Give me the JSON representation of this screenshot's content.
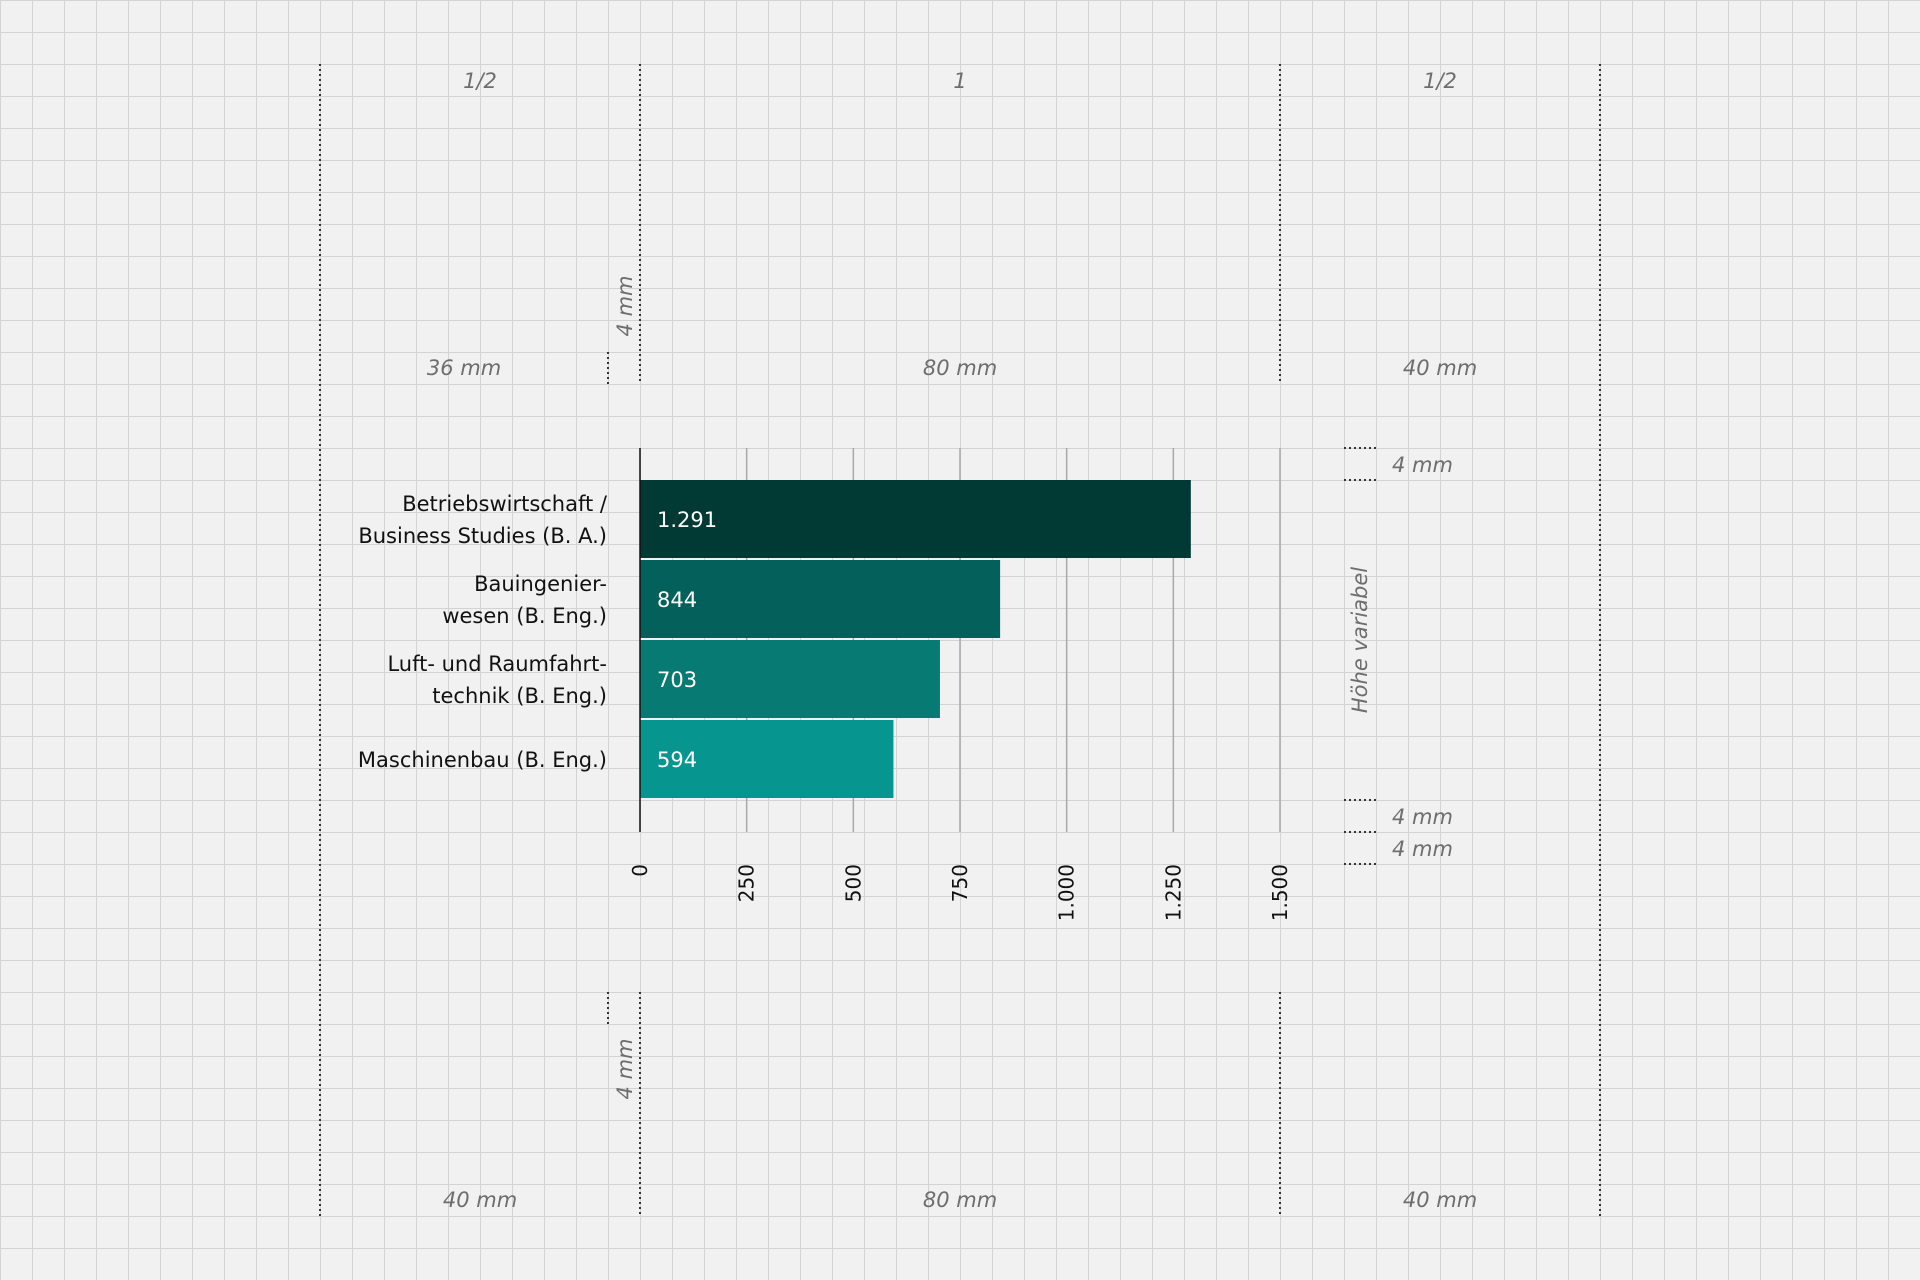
{
  "annotations": {
    "columns_top": [
      "1/2",
      "1",
      "1/2"
    ],
    "widths_top": [
      "36 mm",
      "80 mm",
      "40 mm"
    ],
    "widths_bottom": [
      "40 mm",
      "80 mm",
      "40 mm"
    ],
    "gap_top": "4 mm",
    "gap_bottom": "4 mm",
    "right_top": "4 mm",
    "right_height": "Höhe variabel",
    "right_bottom_1": "4 mm",
    "right_bottom_2": "4 mm"
  },
  "chart_data": {
    "type": "bar",
    "orientation": "horizontal",
    "categories": [
      [
        "Betriebswirtschaft /",
        "Business Studies (B. A.)"
      ],
      [
        "Bauingenier-",
        "wesen (B. Eng.)"
      ],
      [
        "Luft- und Raumfahrt-",
        "technik (B. Eng.)"
      ],
      [
        "Maschinenbau (B. Eng.)"
      ]
    ],
    "values": [
      1291,
      844,
      703,
      594
    ],
    "value_labels": [
      "1.291",
      "844",
      "703",
      "594"
    ],
    "ticks": [
      0,
      250,
      500,
      750,
      1000,
      1250,
      1500
    ],
    "tick_labels": [
      "0",
      "250",
      "500",
      "750",
      "1.000",
      "1.250",
      "1.500"
    ],
    "xlim": [
      0,
      1500
    ],
    "colors": [
      "#013a35",
      "#03605a",
      "#067a73",
      "#079590"
    ],
    "grid": true
  }
}
